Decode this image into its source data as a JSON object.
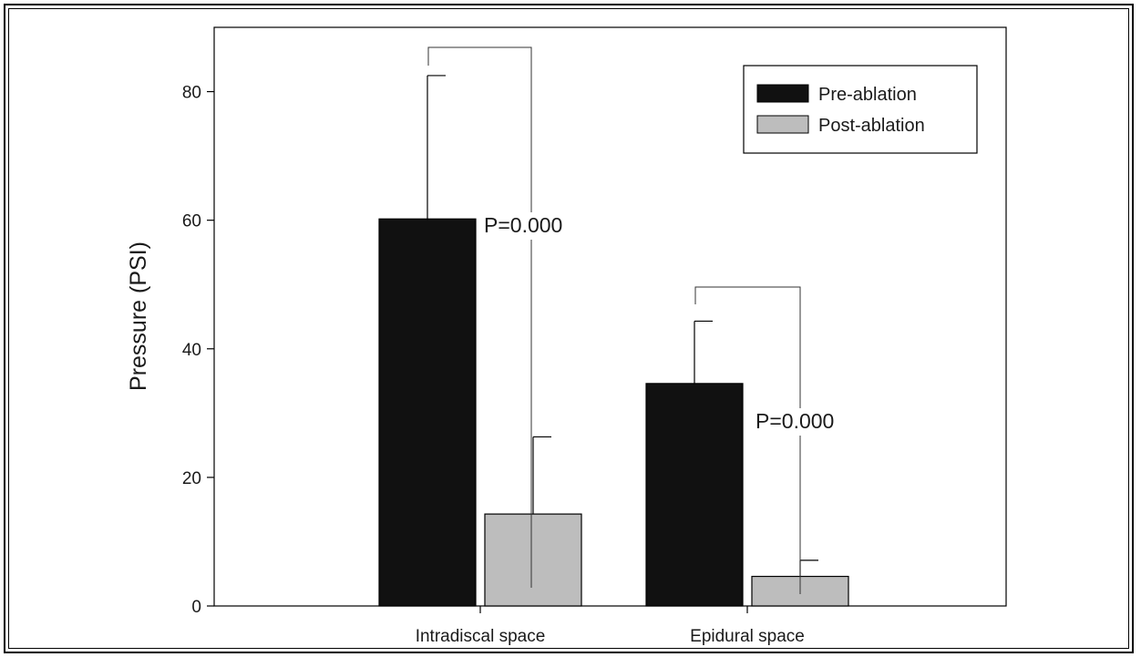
{
  "chart_data": {
    "type": "bar",
    "title": "",
    "xlabel": "",
    "ylabel": "Pressure (PSI)",
    "ylim": [
      0,
      90
    ],
    "yticks": [
      0,
      20,
      40,
      60,
      80
    ],
    "categories": [
      "Intradiscal space",
      "Epidural space"
    ],
    "series": [
      {
        "name": "Pre-ablation",
        "values": [
          60.2,
          34.6
        ],
        "errors": [
          22.3,
          9.7
        ],
        "color": "#111111"
      },
      {
        "name": "Post-ablation",
        "values": [
          14.3,
          4.6
        ],
        "errors": [
          12.0,
          2.5
        ],
        "color": "#bdbdbd"
      }
    ],
    "annotations": [
      {
        "text": "P=0.000",
        "category": "Intradiscal space"
      },
      {
        "text": "P=0.000",
        "category": "Epidural space"
      }
    ],
    "legend": "top-right",
    "grid": false
  }
}
